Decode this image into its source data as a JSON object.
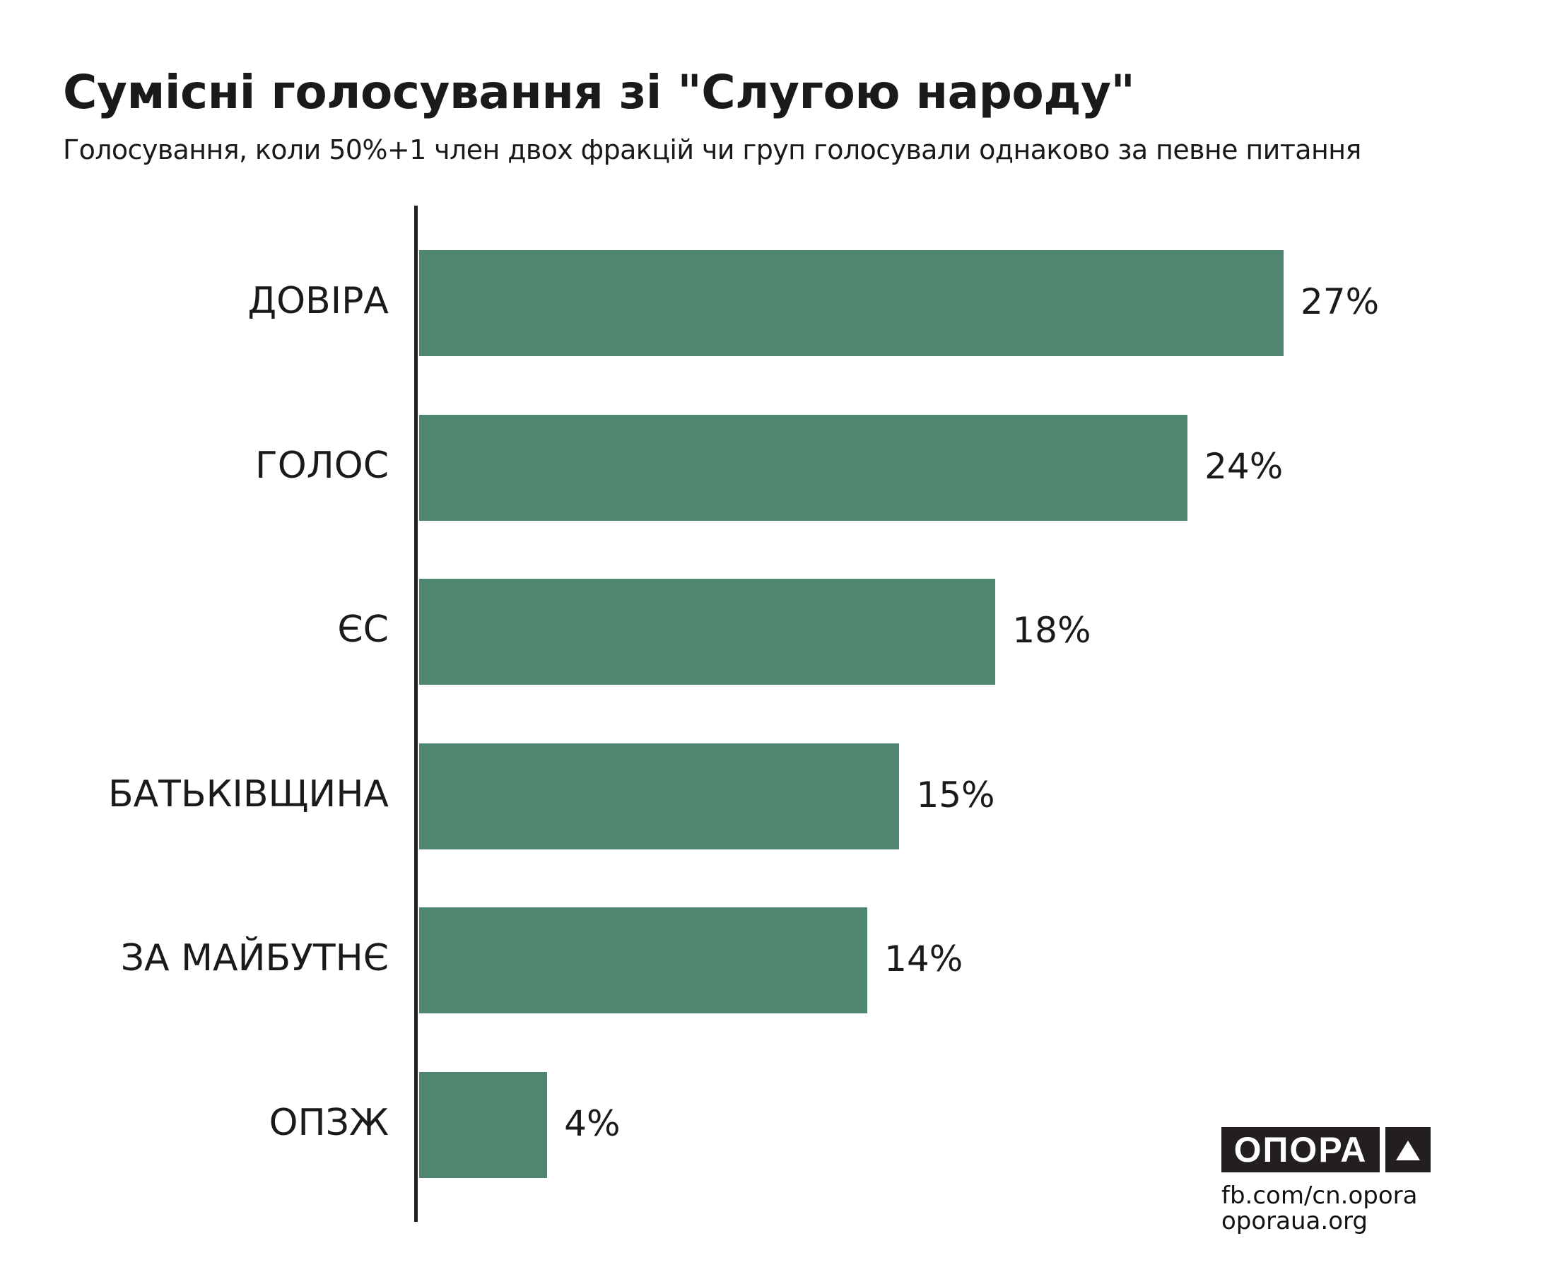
{
  "chart_data": {
    "type": "bar",
    "orientation": "horizontal",
    "title": "Сумісні голосування зі \"Слугою народу\"",
    "subtitle": "Голосування, коли 50%+1 член двох фракцій чи груп голосували однаково за певне питання",
    "categories": [
      "ДОВІРА",
      "ГОЛОС",
      "ЄС",
      "БАТЬКІВЩИНА",
      "ЗА МАЙБУТНЄ",
      "ОПЗЖ"
    ],
    "values": [
      27,
      24,
      18,
      15,
      14,
      4
    ],
    "value_labels": [
      "27%",
      "24%",
      "18%",
      "15%",
      "14%",
      "4%"
    ],
    "unit": "%",
    "xlim": [
      0,
      27
    ],
    "grid": false,
    "bar_color": "#4f8670"
  },
  "footer": {
    "logo_text": "ОПОРА",
    "facebook": "fb.com/cn.opora",
    "website": "oporaua.org"
  }
}
